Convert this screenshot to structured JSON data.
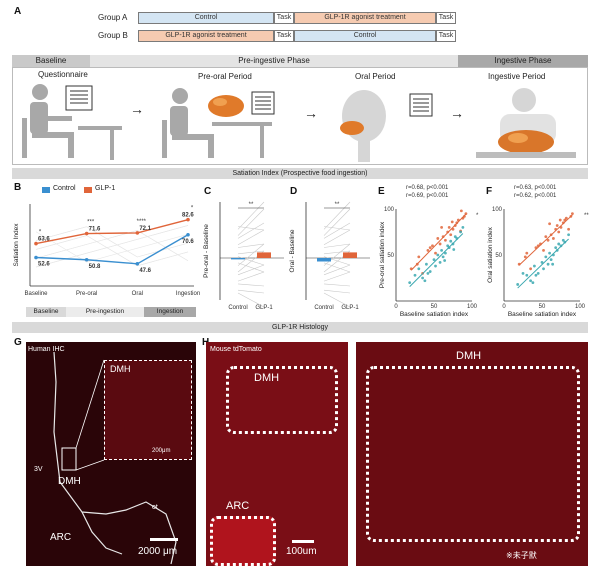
{
  "panels": {
    "a": "A",
    "b": "B",
    "c": "C",
    "d": "D",
    "e": "E",
    "f": "F",
    "g": "G",
    "h": "H"
  },
  "design": {
    "group_a": {
      "label": "Group A",
      "seg1": "Control",
      "task1": "Task",
      "seg2": "GLP-1R agonist treatment",
      "task2": "Task"
    },
    "group_b": {
      "label": "Group B",
      "seg1": "GLP-1R agonist treatment",
      "task1": "Task",
      "seg2": "Control",
      "task2": "Task"
    }
  },
  "phases": {
    "baseline": "Baseline",
    "preingestive": "Pre-ingestive Phase",
    "ingestive": "Ingestive Phase"
  },
  "scenes": {
    "questionnaire": "Questionnaire",
    "preoral": "Pre-oral Period",
    "oral": "Oral Period",
    "ingestive": "Ingestive Period"
  },
  "banner_satiation": "Satiation Index (Prospective food ingestion)",
  "banner_histology": "GLP-1R Histology",
  "legend": {
    "control": "Control",
    "glp1": "GLP-1"
  },
  "colors": {
    "control": "#3a8fd0",
    "glp1": "#e0653a",
    "teal": "#3aa8b0"
  },
  "b_phase_bar": {
    "baseline": "Baseline",
    "preingestion": "Pre-ingestion",
    "ingestion": "Ingestion"
  },
  "histology": {
    "human_ihc": "Human IHC",
    "dmh_small": "DMH",
    "dmh_inset": "DMH",
    "v3": "3V",
    "arc": "ARC",
    "ot": "ot",
    "scale_inset": "200μm",
    "scale_main": "2000 μm",
    "mouse": "Mouse tdTomato",
    "dmh_h1": "DMH",
    "arc_h": "ARC",
    "scale_h": "100um",
    "dmh_h2": "DMH",
    "watermark": "※未子默"
  },
  "chart_data": [
    {
      "id": "B",
      "type": "line",
      "ylabel": "Satiation Index",
      "categories": [
        "Baseline",
        "Pre-oral",
        "Oral",
        "Ingestion"
      ],
      "series": [
        {
          "name": "Control",
          "values": [
            52.6,
            50.8,
            47.6,
            70.6
          ]
        },
        {
          "name": "GLP-1",
          "values": [
            63.6,
            71.6,
            72.1,
            82.6
          ]
        }
      ],
      "significance": [
        "*",
        "***",
        "****",
        "*"
      ],
      "ylim": [
        30,
        95
      ]
    },
    {
      "id": "C",
      "type": "bar",
      "ylabel": "Pre-oral - Baseline",
      "categories": [
        "Control",
        "GLP-1"
      ],
      "values": [
        -2,
        8
      ],
      "significance": "**",
      "ylim": [
        -60,
        80
      ]
    },
    {
      "id": "D",
      "type": "bar",
      "ylabel": "Oral - Baseline",
      "categories": [
        "Control",
        "GLP-1"
      ],
      "values": [
        -5,
        8
      ],
      "significance": "**",
      "ylim": [
        -60,
        80
      ]
    },
    {
      "id": "E",
      "type": "scatter",
      "xlabel": "Baseline satiation index",
      "ylabel": "Pre-oral satiation index",
      "stats": [
        "r=0.68, p<0.001",
        "r=0.69, p<0.001"
      ],
      "significance": "*",
      "xlim": [
        0,
        100
      ],
      "ylim": [
        0,
        100
      ],
      "series": [
        {
          "name": "GLP-1",
          "x": [
            20,
            28,
            35,
            42,
            48,
            52,
            55,
            58,
            62,
            65,
            68,
            70,
            72,
            75,
            78,
            80,
            82,
            85,
            88,
            90,
            92,
            30,
            45,
            60,
            74,
            86
          ],
          "y": [
            35,
            40,
            30,
            55,
            60,
            52,
            68,
            62,
            70,
            66,
            75,
            80,
            72,
            78,
            82,
            85,
            88,
            76,
            90,
            92,
            95,
            48,
            58,
            80,
            86,
            98
          ]
        },
        {
          "name": "Control",
          "x": [
            18,
            25,
            30,
            35,
            40,
            45,
            50,
            52,
            55,
            58,
            60,
            62,
            65,
            68,
            70,
            72,
            75,
            78,
            80,
            85,
            88,
            42,
            38,
            64,
            76
          ],
          "y": [
            20,
            28,
            35,
            25,
            40,
            32,
            45,
            38,
            50,
            42,
            55,
            48,
            52,
            60,
            58,
            65,
            62,
            70,
            68,
            75,
            80,
            30,
            22,
            44,
            56
          ]
        }
      ]
    },
    {
      "id": "F",
      "type": "scatter",
      "xlabel": "Baseline satiation index",
      "ylabel": "Oral satiation index",
      "stats": [
        "r=0.63, p<0.001",
        "r=0.62, p<0.001"
      ],
      "significance": "**",
      "xlim": [
        0,
        100
      ],
      "ylim": [
        0,
        100
      ],
      "series": [
        {
          "name": "GLP-1",
          "x": [
            20,
            28,
            35,
            42,
            48,
            52,
            55,
            58,
            62,
            65,
            68,
            70,
            72,
            75,
            78,
            80,
            82,
            85,
            88,
            90,
            30,
            45,
            60,
            74
          ],
          "y": [
            40,
            48,
            35,
            58,
            62,
            55,
            70,
            66,
            72,
            68,
            78,
            82,
            75,
            80,
            85,
            88,
            90,
            78,
            92,
            95,
            52,
            60,
            84,
            88
          ]
        },
        {
          "name": "Control",
          "x": [
            18,
            25,
            30,
            35,
            40,
            45,
            50,
            52,
            55,
            58,
            60,
            62,
            65,
            68,
            70,
            72,
            75,
            78,
            80,
            85,
            42,
            38,
            64
          ],
          "y": [
            18,
            30,
            28,
            22,
            38,
            30,
            42,
            35,
            48,
            40,
            52,
            45,
            50,
            58,
            55,
            62,
            60,
            66,
            64,
            72,
            28,
            20,
            40
          ]
        }
      ]
    }
  ]
}
